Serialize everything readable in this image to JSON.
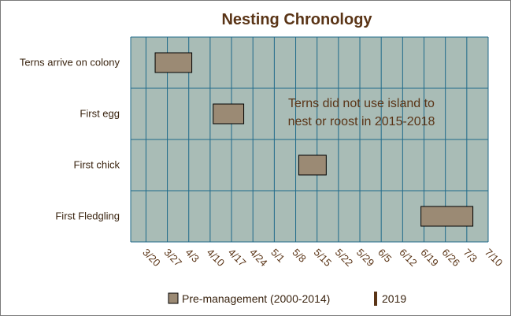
{
  "chart_data": {
    "type": "gantt",
    "title": "Nesting Chronology",
    "categories": [
      "Terns arrive on colony",
      "First egg",
      "First chick",
      "First Fledgling"
    ],
    "x_ticks": [
      "3/20",
      "3/27",
      "4/3",
      "4/10",
      "4/17",
      "4/24",
      "5/1",
      "5/8",
      "5/15",
      "5/22",
      "5/29",
      "6/5",
      "6/12",
      "6/19",
      "6/26",
      "7/3",
      "7/10"
    ],
    "xlim": [
      "3/15",
      "7/10"
    ],
    "series": [
      {
        "name": "Pre-management (2000-2014)",
        "color": "#9b8a74",
        "ranges": [
          {
            "category": "Terns arrive on colony",
            "start": "3/23",
            "end": "4/4"
          },
          {
            "category": "First egg",
            "start": "4/11",
            "end": "4/21"
          },
          {
            "category": "First chick",
            "start": "5/9",
            "end": "5/18"
          },
          {
            "category": "First Fledgling",
            "start": "6/18",
            "end": "7/5"
          }
        ]
      },
      {
        "name": "2019",
        "color": "#5a3416",
        "ranges": []
      }
    ],
    "annotation": [
      "Terns did not use island to",
      "nest or roost in 2015-2018"
    ],
    "grid": true,
    "legend_position": "bottom",
    "plot_background": "#a9bcb6",
    "grid_color": "#1f6a8a",
    "title_color": "#5a3416"
  }
}
